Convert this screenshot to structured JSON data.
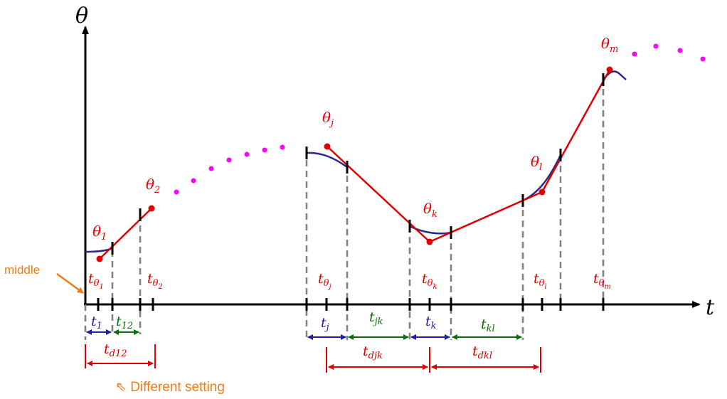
{
  "axes": {
    "y_label": "θ",
    "x_label": "t"
  },
  "annotations": {
    "middle": "middle",
    "different_setting": "⇖ Different setting"
  },
  "theta_labels": [
    {
      "base": "θ",
      "sub": "1"
    },
    {
      "base": "θ",
      "sub": "2"
    },
    {
      "base": "θ",
      "sub": "j"
    },
    {
      "base": "θ",
      "sub": "k"
    },
    {
      "base": "θ",
      "sub": "l"
    },
    {
      "base": "θ",
      "sub": "m"
    }
  ],
  "t_theta_labels": [
    {
      "base": "t",
      "sub": "θ",
      "subsub": "1"
    },
    {
      "base": "t",
      "sub": "θ",
      "subsub": "2"
    },
    {
      "base": "t",
      "sub": "θ",
      "subsub": "j"
    },
    {
      "base": "t",
      "sub": "θ",
      "subsub": "k"
    },
    {
      "base": "t",
      "sub": "θ",
      "subsub": "l"
    },
    {
      "base": "t",
      "sub": "θ",
      "subsub": "m"
    }
  ],
  "interval_labels": [
    {
      "base": "t",
      "sub": "1",
      "color": "blue"
    },
    {
      "base": "t",
      "sub": "12",
      "color": "green"
    },
    {
      "base": "t",
      "sub": "j",
      "color": "blue"
    },
    {
      "base": "t",
      "sub": "jk",
      "color": "green"
    },
    {
      "base": "t",
      "sub": "k",
      "color": "blue"
    },
    {
      "base": "t",
      "sub": "kl",
      "color": "green"
    }
  ],
  "delay_labels": [
    {
      "base": "t",
      "sub": "d12"
    },
    {
      "base": "t",
      "sub": "djk"
    },
    {
      "base": "t",
      "sub": "dkl"
    }
  ],
  "colors": {
    "red": "#e00000",
    "blue": "#1f1fa0",
    "green": "#0a6e0a",
    "magenta": "#ff00ff",
    "orange": "#f07a1a",
    "dash": "#7f7f7f"
  }
}
